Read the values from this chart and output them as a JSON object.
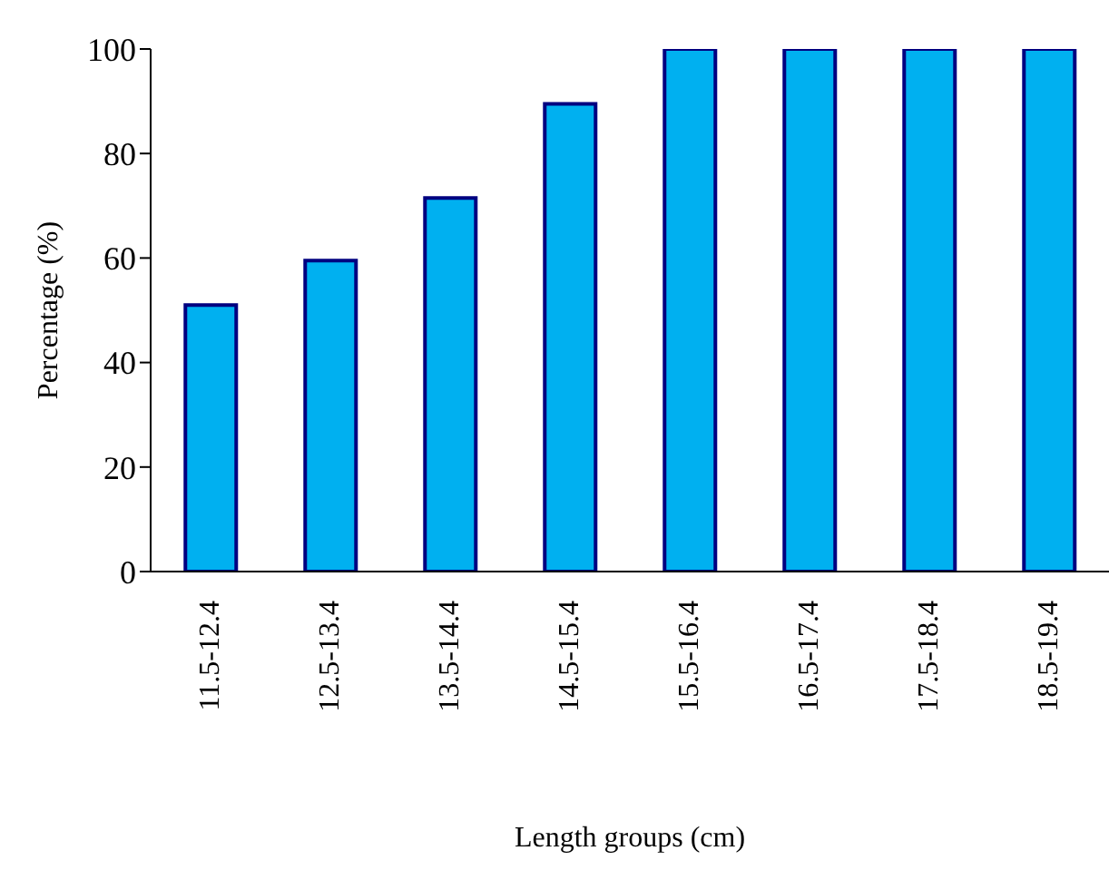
{
  "chart_data": {
    "type": "bar",
    "xlabel": "Length groups (cm)",
    "ylabel": "Percentage (%)",
    "categories": [
      "11.5-12.4",
      "12.5-13.4",
      "13.5-14.4",
      "14.5-15.4",
      "15.5-16.4",
      "16.5-17.4",
      "17.5-18.4",
      "18.5-19.4"
    ],
    "values": [
      51,
      59.5,
      71.5,
      89.5,
      100,
      100,
      100,
      100
    ],
    "color": "#00b0f0",
    "ylim": [
      0,
      100
    ],
    "yticks": [
      0,
      20,
      40,
      60,
      80,
      100
    ]
  }
}
